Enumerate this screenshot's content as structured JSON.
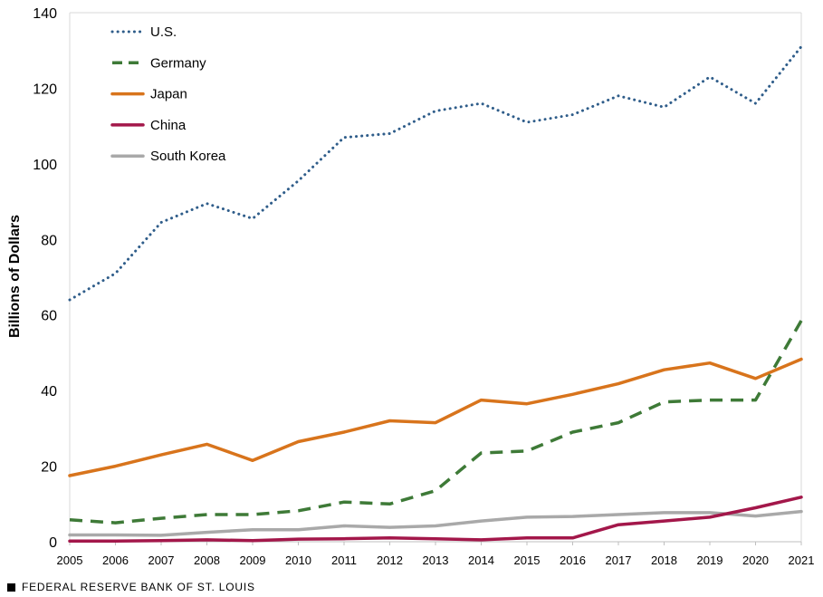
{
  "chart_data": {
    "type": "line",
    "title": "",
    "xlabel": "",
    "ylabel": "Billions of Dollars",
    "ylim": [
      0,
      140
    ],
    "yticks": [
      0,
      20,
      40,
      60,
      80,
      100,
      120,
      140
    ],
    "x": [
      "2005",
      "2006",
      "2007",
      "2008",
      "2009",
      "2010",
      "2011",
      "2012",
      "2013",
      "2014",
      "2015",
      "2016",
      "2017",
      "2018",
      "2019",
      "2020",
      "2021"
    ],
    "grid": false,
    "legend_position": "top-left",
    "series": [
      {
        "name": "U.S.",
        "color": "#2f5d8a",
        "style": "dotted",
        "values": [
          64,
          71,
          84.5,
          89.5,
          85.5,
          95.5,
          107,
          108,
          114,
          116,
          111,
          113,
          118,
          115,
          123,
          116,
          131
        ]
      },
      {
        "name": "Germany",
        "color": "#3e7a37",
        "style": "dashed",
        "values": [
          5.8,
          5,
          6.2,
          7.2,
          7.2,
          8.2,
          10.5,
          10,
          13.5,
          23.5,
          24,
          29,
          31.5,
          37,
          37.5,
          37.5,
          58.5
        ]
      },
      {
        "name": "Japan",
        "color": "#d8741c",
        "style": "solid",
        "values": [
          17.5,
          20,
          23,
          25.8,
          21.5,
          26.5,
          29,
          32,
          31.5,
          37.5,
          36.5,
          39,
          41.8,
          45.5,
          47.3,
          43.2,
          48.3
        ]
      },
      {
        "name": "China",
        "color": "#a3174a",
        "style": "solid",
        "values": [
          0.2,
          0.2,
          0.3,
          0.5,
          0.3,
          0.7,
          0.8,
          1,
          0.8,
          0.5,
          1,
          1,
          4.5,
          5.5,
          6.5,
          9,
          11.8
        ]
      },
      {
        "name": "South Korea",
        "color": "#a9a9a9",
        "style": "solid",
        "values": [
          1.8,
          1.8,
          1.7,
          2.5,
          3.2,
          3.2,
          4.2,
          3.8,
          4.2,
          5.5,
          6.5,
          6.7,
          7.2,
          7.7,
          7.7,
          6.8,
          8
        ]
      }
    ]
  },
  "footer": {
    "source": "FEDERAL RESERVE BANK OF ST. LOUIS"
  }
}
